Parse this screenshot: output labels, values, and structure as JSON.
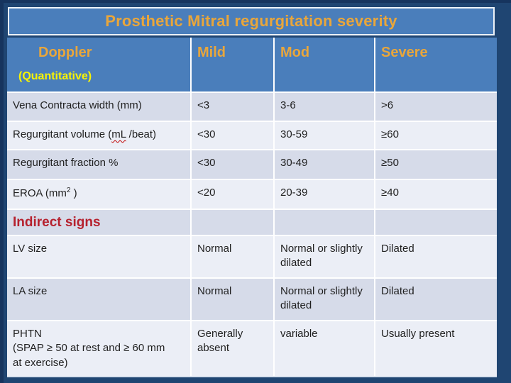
{
  "slide": {
    "title": "Prosthetic Mitral regurgitation severity"
  },
  "colors": {
    "background_navy": "#1F4572",
    "header_blue": "#4A7EBB",
    "title_text_orange": "#E9A63B",
    "quantitative_yellow": "#F8F303",
    "indirect_red": "#B6212E",
    "row_shade_dark": "#D6DBE9",
    "row_shade_light": "#EBEEF6",
    "body_text": "#1F1F1F",
    "grid_line_white": "#FFFFFF"
  },
  "table": {
    "header": {
      "col1_line1": "Doppler",
      "col1_line2": "(Quantitative)",
      "col2": "Mild",
      "col3": "Mod",
      "col4": "Severe"
    },
    "rows": [
      {
        "label": "Vena Contracta width  (mm)",
        "mild": "<3",
        "mod": "3-6",
        "severe": ">6"
      },
      {
        "label_pre": "Regurgitant volume (",
        "label_wavy": "mL",
        "label_post": " /beat)",
        "mild": "<30",
        "mod": "30-59",
        "severe": "≥60"
      },
      {
        "label": "Regurgitant fraction %",
        "mild": "<30",
        "mod": "30-49",
        "severe": "≥50"
      },
      {
        "label_pre": "EROA  (mm",
        "label_sup": "2",
        "label_post": " )",
        "mild": "<20",
        "mod": "20-39",
        "severe": "≥40"
      },
      {
        "label": "Indirect signs",
        "mild": "",
        "mod": "",
        "severe": ""
      },
      {
        "label": "LV size",
        "mild": "Normal",
        "mod": "Normal or slightly dilated",
        "severe": "Dilated"
      },
      {
        "label": "LA size",
        "mild": "Normal",
        "mod": "Normal or slightly dilated",
        "severe": "Dilated"
      },
      {
        "label": "PHTN\n(SPAP ≥ 50 at rest and ≥ 60 mm\nat exercise)",
        "mild": "Generally absent",
        "mod": "variable",
        "severe": "Usually present"
      }
    ]
  }
}
